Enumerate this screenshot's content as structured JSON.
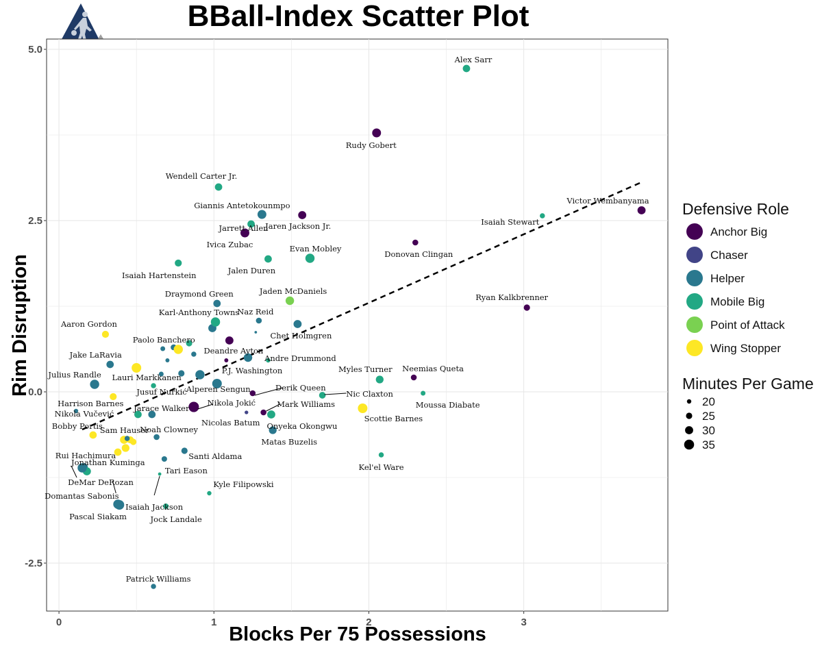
{
  "chart_data": {
    "type": "scatter",
    "title": "BBall-Index Scatter Plot",
    "xlabel": "Blocks Per 75 Possessions",
    "ylabel": "Rim Disruption",
    "xlim": [
      -0.08,
      3.93
    ],
    "ylim": [
      -3.2,
      5.15
    ],
    "x_ticks": [
      0,
      1,
      2,
      3
    ],
    "y_ticks": [
      -2.5,
      0.0,
      2.5,
      5.0
    ],
    "y_tick_labels": [
      "-2.5",
      "0.0",
      "2.5",
      "5.0"
    ],
    "grid": true,
    "trendline": {
      "style": "dashed",
      "x": [
        0.15,
        3.75
      ],
      "y": [
        -0.55,
        3.05
      ]
    },
    "color_legend": {
      "title": "Defensive Role",
      "placement": "right",
      "items": [
        {
          "label": "Anchor Big",
          "color": "#440154"
        },
        {
          "label": "Chaser",
          "color": "#414487"
        },
        {
          "label": "Helper",
          "color": "#2a788e"
        },
        {
          "label": "Mobile Big",
          "color": "#22a884"
        },
        {
          "label": "Point of Attack",
          "color": "#7ad151"
        },
        {
          "label": "Wing Stopper",
          "color": "#fde725"
        }
      ]
    },
    "size_legend": {
      "title": "Minutes Per Game",
      "placement": "right",
      "items": [
        {
          "label": "20",
          "minutes": 20
        },
        {
          "label": "25",
          "minutes": 25
        },
        {
          "label": "30",
          "minutes": 30
        },
        {
          "label": "35",
          "minutes": 35
        }
      ]
    },
    "points": [
      {
        "label": "Alex Sarr",
        "x": 2.63,
        "y": 4.72,
        "role": "Mobile Big",
        "minutes": 28
      },
      {
        "label": "Rudy Gobert",
        "x": 2.05,
        "y": 3.78,
        "role": "Anchor Big",
        "minutes": 32
      },
      {
        "label": "Wendell Carter Jr.",
        "x": 1.03,
        "y": 2.99,
        "role": "Mobile Big",
        "minutes": 28
      },
      {
        "label": "Giannis Antetokounmpo",
        "x": 1.31,
        "y": 2.59,
        "role": "Helper",
        "minutes": 32
      },
      {
        "label": "Jaren Jackson Jr.",
        "x": 1.57,
        "y": 2.58,
        "role": "Anchor Big",
        "minutes": 30
      },
      {
        "label": "Jarrett Allen",
        "x": 1.24,
        "y": 2.45,
        "role": "Mobile Big",
        "minutes": 28
      },
      {
        "label": "Ivica Zubac",
        "x": 1.2,
        "y": 2.32,
        "role": "Anchor Big",
        "minutes": 32
      },
      {
        "label": "Victor Wembanyama",
        "x": 3.76,
        "y": 2.65,
        "role": "Anchor Big",
        "minutes": 30
      },
      {
        "label": "Isaiah Stewart",
        "x": 3.12,
        "y": 2.57,
        "role": "Mobile Big",
        "minutes": 22
      },
      {
        "label": "Donovan Clingan",
        "x": 2.3,
        "y": 2.18,
        "role": "Anchor Big",
        "minutes": 24
      },
      {
        "label": "Evan Mobley",
        "x": 1.62,
        "y": 1.95,
        "role": "Mobile Big",
        "minutes": 33
      },
      {
        "label": "Jalen Duren",
        "x": 1.35,
        "y": 1.94,
        "role": "Mobile Big",
        "minutes": 28
      },
      {
        "label": "Isaiah Hartenstein",
        "x": 0.77,
        "y": 1.88,
        "role": "Mobile Big",
        "minutes": 27
      },
      {
        "label": "Jaden McDaniels",
        "x": 1.49,
        "y": 1.33,
        "role": "Point of Attack",
        "minutes": 31
      },
      {
        "label": "Draymond Green",
        "x": 1.02,
        "y": 1.29,
        "role": "Helper",
        "minutes": 28
      },
      {
        "label": "Ryan Kalkbrenner",
        "x": 3.02,
        "y": 1.23,
        "role": "Anchor Big",
        "minutes": 25
      },
      {
        "label": "Naz Reid",
        "x": 1.29,
        "y": 1.04,
        "role": "Helper",
        "minutes": 24
      },
      {
        "label": "Karl-Anthony Towns",
        "x": 1.01,
        "y": 1.02,
        "role": "Mobile Big",
        "minutes": 33
      },
      {
        "label": "Chet Holmgren",
        "x": 1.54,
        "y": 0.99,
        "role": "Helper",
        "minutes": 30
      },
      {
        "label": "Aaron Gordon",
        "x": 0.3,
        "y": 0.84,
        "role": "Wing Stopper",
        "minutes": 27
      },
      {
        "label": "Paolo Banchero",
        "x": 0.77,
        "y": 0.62,
        "role": "Wing Stopper",
        "minutes": 33
      },
      {
        "label": "Deandre Ayton",
        "x": 1.1,
        "y": 0.75,
        "role": "Anchor Big",
        "minutes": 30
      },
      {
        "label": "Andre Drummond",
        "x": 1.35,
        "y": 0.46,
        "role": "Mobile Big",
        "minutes": 20
      },
      {
        "label": "P.J. Washington",
        "x": 1.22,
        "y": 0.5,
        "role": "Helper",
        "minutes": 31
      },
      {
        "label": "Jake LaRavia",
        "x": 0.33,
        "y": 0.4,
        "role": "Helper",
        "minutes": 28
      },
      {
        "label": "Lauri Markkanen",
        "x": 0.5,
        "y": 0.35,
        "role": "Wing Stopper",
        "minutes": 34
      },
      {
        "label": "Neemias Queta",
        "x": 2.29,
        "y": 0.21,
        "role": "Anchor Big",
        "minutes": 24
      },
      {
        "label": "Myles Turner",
        "x": 2.07,
        "y": 0.18,
        "role": "Mobile Big",
        "minutes": 29
      },
      {
        "label": "Julius Randle",
        "x": 0.23,
        "y": 0.11,
        "role": "Helper",
        "minutes": 33
      },
      {
        "label": "Alperen Sengun",
        "x": 1.02,
        "y": 0.12,
        "role": "Helper",
        "minutes": 34
      },
      {
        "label": "Derik Queen",
        "x": 1.25,
        "y": -0.02,
        "role": "Anchor Big",
        "minutes": 24
      },
      {
        "label": "Nic Claxton",
        "x": 1.7,
        "y": -0.05,
        "role": "Mobile Big",
        "minutes": 26
      },
      {
        "label": "Moussa Diabate",
        "x": 2.35,
        "y": -0.02,
        "role": "Mobile Big",
        "minutes": 21
      },
      {
        "label": "Harrison Barnes",
        "x": 0.35,
        "y": -0.07,
        "role": "Wing Stopper",
        "minutes": 27
      },
      {
        "label": "Jusuf Nurkić",
        "x": 0.61,
        "y": 0.09,
        "role": "Mobile Big",
        "minutes": 22
      },
      {
        "label": "Nikola Jokić",
        "x": 0.87,
        "y": -0.22,
        "role": "Anchor Big",
        "minutes": 36
      },
      {
        "label": "Scottie Barnes",
        "x": 1.96,
        "y": -0.24,
        "role": "Wing Stopper",
        "minutes": 34
      },
      {
        "label": "Mark Williams",
        "x": 1.32,
        "y": -0.3,
        "role": "Anchor Big",
        "minutes": 24
      },
      {
        "label": "Jarace Walker",
        "x": 0.6,
        "y": -0.33,
        "role": "Helper",
        "minutes": 28
      },
      {
        "label": "Onyeka Okongwu",
        "x": 1.37,
        "y": -0.33,
        "role": "Mobile Big",
        "minutes": 30
      },
      {
        "label": "Nicolas Batum",
        "x": 1.21,
        "y": -0.3,
        "role": "Chaser",
        "minutes": 18
      },
      {
        "label": "Nikola Vučević",
        "x": 0.11,
        "y": -0.28,
        "role": "Helper",
        "minutes": 20
      },
      {
        "label": "Matas Buzelis",
        "x": 1.38,
        "y": -0.56,
        "role": "Helper",
        "minutes": 29
      },
      {
        "label": "Bobby Portis",
        "x": 0.22,
        "y": -0.63,
        "role": "Wing Stopper",
        "minutes": 28
      },
      {
        "label": "Sam Hauser",
        "x": 0.44,
        "y": -0.68,
        "role": "Helper",
        "minutes": 22
      },
      {
        "label": "Noah Clowney",
        "x": 0.63,
        "y": -0.66,
        "role": "Helper",
        "minutes": 24
      },
      {
        "label": "Rui Hachimura",
        "x": 0.38,
        "y": -0.88,
        "role": "Wing Stopper",
        "minutes": 28
      },
      {
        "label": "Santi Aldama",
        "x": 0.81,
        "y": -0.86,
        "role": "Helper",
        "minutes": 25
      },
      {
        "label": "Kel'el Ware",
        "x": 2.08,
        "y": -0.92,
        "role": "Mobile Big",
        "minutes": 22
      },
      {
        "label": "Jonathan Kuminga",
        "x": 0.18,
        "y": -1.16,
        "role": "Mobile Big",
        "minutes": 30
      },
      {
        "label": "DeMar DeRozan",
        "x": 0.15,
        "y": -1.11,
        "role": "Helper",
        "minutes": 33
      },
      {
        "label": "Tari Eason",
        "x": 0.68,
        "y": -0.98,
        "role": "Helper",
        "minutes": 23
      },
      {
        "label": "Isaiah Jackson",
        "x": 0.65,
        "y": -1.2,
        "role": "Mobile Big",
        "minutes": 17
      },
      {
        "label": "Kyle Filipowski",
        "x": 0.97,
        "y": -1.48,
        "role": "Mobile Big",
        "minutes": 20
      },
      {
        "label": "Domantas Sabonis",
        "x": 0.39,
        "y": -1.65,
        "role": "Helper",
        "minutes": 34
      },
      {
        "label": "Jock Landale",
        "x": 0.69,
        "y": -1.67,
        "role": "Mobile Big",
        "minutes": 23
      },
      {
        "label": "Patrick Williams",
        "x": 0.61,
        "y": -2.84,
        "role": "Helper",
        "minutes": 22
      },
      {
        "label": "Pascal Siakam",
        "x": 0.38,
        "y": -1.64,
        "role": "Helper",
        "minutes": 33
      }
    ],
    "unlabeled_points": [
      {
        "x": 0.67,
        "y": 0.63,
        "role": "Helper",
        "minutes": 21
      },
      {
        "x": 0.74,
        "y": 0.65,
        "role": "Helper",
        "minutes": 24
      },
      {
        "x": 0.84,
        "y": 0.71,
        "role": "Mobile Big",
        "minutes": 25
      },
      {
        "x": 0.87,
        "y": 0.55,
        "role": "Helper",
        "minutes": 22
      },
      {
        "x": 0.7,
        "y": 0.46,
        "role": "Helper",
        "minutes": 19
      },
      {
        "x": 0.66,
        "y": 0.26,
        "role": "Helper",
        "minutes": 21
      },
      {
        "x": 0.79,
        "y": 0.27,
        "role": "Helper",
        "minutes": 25
      },
      {
        "x": 0.91,
        "y": 0.25,
        "role": "Helper",
        "minutes": 33
      },
      {
        "x": 0.99,
        "y": 0.93,
        "role": "Helper",
        "minutes": 30
      },
      {
        "x": 1.27,
        "y": 0.87,
        "role": "Helper",
        "minutes": 15
      },
      {
        "x": 1.08,
        "y": 0.46,
        "role": "Anchor Big",
        "minutes": 19
      },
      {
        "x": 0.51,
        "y": -0.33,
        "role": "Mobile Big",
        "minutes": 28
      },
      {
        "x": 0.46,
        "y": -0.7,
        "role": "Wing Stopper",
        "minutes": 27
      },
      {
        "x": 0.42,
        "y": -0.7,
        "role": "Wing Stopper",
        "minutes": 30
      },
      {
        "x": 0.48,
        "y": -0.73,
        "role": "Wing Stopper",
        "minutes": 25
      },
      {
        "x": 0.43,
        "y": -0.82,
        "role": "Wing Stopper",
        "minutes": 29
      },
      {
        "x": 0.16,
        "y": -1.1,
        "role": "Helper",
        "minutes": 30
      }
    ]
  },
  "logo": {
    "icon": "basketball-player-logo-icon"
  }
}
